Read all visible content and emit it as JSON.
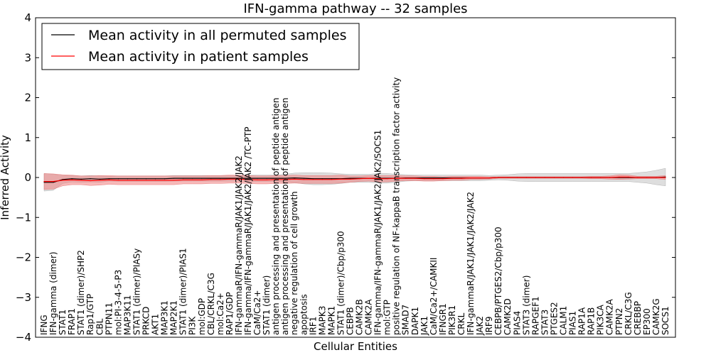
{
  "chart_data": {
    "type": "line",
    "title": "IFN-gamma pathway -- 32 samples",
    "xlabel": "Cellular Entities",
    "ylabel": "Inferred Activity",
    "ylim": [
      -4,
      4
    ],
    "yticks": [
      "4",
      "3",
      "2",
      "1",
      "0",
      "−1",
      "−2",
      "−3",
      "−4"
    ],
    "grid": false,
    "legend_position": "top-left",
    "categories": [
      "IFNG",
      "IFN-gamma (dimer)",
      "STAT1",
      "FRAP1",
      "STAT1 (dimer)/SHP2",
      "Rap1/GTP",
      "CBL",
      "PTPN11",
      "mol:PI-3-4-5-P3",
      "MAP3K11",
      "STAT1 (dimer)/PIASy",
      "PRKCD",
      "AKT1",
      "MAP3K1",
      "MAP2K1",
      "STAT1 (dimer)/PIAS1",
      "PI3K",
      "mol:GDP",
      "CBL/CRKL/C3G",
      "mol:Ca2+",
      "RAP1/GDP",
      "IFN-gammaR/IFN-gammaR/JAK1/JAK2/JAK2",
      "IFN-gamma/IFN-gammaR/JAK1/JAK2/JAK2  /TC-PTP",
      "CaM/Ca2+",
      "STAT1 (dimer)",
      "antigen processing and presentation of peptide antigen",
      "antigen processing and presentation of peptide antigen",
      "negative regulation of cell growth",
      "apoptosis",
      "IRF1",
      "MAPK3",
      "MAPK1",
      "STAT1 (dimer)/Cbp/p300",
      "CEBPB",
      "CAMK2B",
      "CAMK2A",
      "IFN-gamma/IFN-gammaR/JAK1/JAK2/JAK2/SOCS1",
      "mol:GTP",
      "positive regulation of NF-kappaB transcription factor activity",
      "SMAD7",
      "DAPK1",
      "JAK1",
      "CaM/Ca2+/CAMKII",
      "IFNGR1",
      "PIK3R1",
      "CRKL",
      "IFN-gammaR/JAK1/JAK1/JAK2/JAK2",
      "JAK2",
      "IRF9",
      "CEBPB/PTGES2/Cbp/p300",
      "CAMK2D",
      "PIAS4",
      "STAT3 (dimer)",
      "RAPGEF1",
      "STAT3",
      "PTGES2",
      "CALM1",
      "PIAS1",
      "RAP1A",
      "RAP1B",
      "PIK3CA",
      "CAMK2A",
      "PTPN2",
      "CRKL/C3G",
      "CREBBP",
      "EP300",
      "CAMK2G",
      "SOCS1"
    ],
    "series": [
      {
        "name": "Mean activity in all permuted samples",
        "color": "#000000",
        "values": [
          -0.12,
          -0.12,
          -0.05,
          -0.03,
          -0.04,
          -0.03,
          -0.04,
          -0.03,
          -0.03,
          -0.03,
          -0.03,
          -0.03,
          -0.03,
          -0.03,
          -0.02,
          -0.02,
          -0.02,
          -0.02,
          -0.02,
          -0.02,
          -0.02,
          -0.02,
          -0.02,
          -0.02,
          -0.02,
          -0.02,
          -0.02,
          -0.01,
          -0.02,
          -0.03,
          -0.03,
          -0.03,
          -0.03,
          -0.02,
          -0.02,
          -0.02,
          -0.02,
          -0.02,
          -0.02,
          -0.01,
          -0.01,
          -0.01,
          -0.01,
          -0.01,
          -0.01,
          -0.01,
          -0.01,
          -0.01,
          -0.01,
          0.0,
          0.0,
          0.0,
          0.0,
          0.0,
          0.0,
          0.0,
          0.0,
          0.0,
          0.0,
          0.0,
          0.0,
          0.0,
          0.0,
          0.0,
          0.0,
          0.0,
          0.0,
          0.01
        ],
        "band": [
          0.22,
          0.2,
          0.1,
          0.08,
          0.08,
          0.08,
          0.08,
          0.06,
          0.07,
          0.07,
          0.07,
          0.07,
          0.07,
          0.07,
          0.07,
          0.07,
          0.07,
          0.07,
          0.07,
          0.07,
          0.07,
          0.07,
          0.08,
          0.08,
          0.08,
          0.08,
          0.1,
          0.12,
          0.14,
          0.15,
          0.15,
          0.14,
          0.12,
          0.1,
          0.1,
          0.1,
          0.12,
          0.12,
          0.1,
          0.08,
          0.07,
          0.07,
          0.07,
          0.07,
          0.07,
          0.07,
          0.07,
          0.07,
          0.06,
          0.06,
          0.07,
          0.09,
          0.1,
          0.1,
          0.1,
          0.1,
          0.1,
          0.1,
          0.1,
          0.1,
          0.1,
          0.1,
          0.1,
          0.1,
          0.12,
          0.14,
          0.18,
          0.22
        ]
      },
      {
        "name": "Mean activity in patient samples",
        "color": "#ff0000",
        "values": [
          -0.1,
          -0.1,
          -0.07,
          -0.06,
          -0.07,
          -0.08,
          -0.07,
          -0.06,
          -0.07,
          -0.07,
          -0.07,
          -0.07,
          -0.07,
          -0.07,
          -0.07,
          -0.06,
          -0.06,
          -0.06,
          -0.05,
          -0.05,
          -0.04,
          -0.04,
          -0.05,
          -0.06,
          -0.06,
          -0.05,
          -0.05,
          -0.04,
          -0.05,
          -0.05,
          -0.05,
          -0.05,
          -0.04,
          -0.04,
          -0.03,
          -0.02,
          -0.03,
          -0.03,
          -0.02,
          -0.02,
          -0.02,
          -0.03,
          -0.03,
          -0.03,
          -0.02,
          -0.02,
          -0.01,
          -0.01,
          -0.01,
          0.0,
          0.0,
          0.0,
          0.0,
          0.0,
          0.0,
          0.0,
          0.0,
          0.0,
          0.0,
          0.0,
          0.0,
          0.0,
          0.01,
          0.01,
          0.0,
          0.0,
          0.0,
          0.0
        ],
        "band": [
          0.2,
          0.19,
          0.14,
          0.12,
          0.11,
          0.12,
          0.12,
          0.11,
          0.11,
          0.11,
          0.11,
          0.11,
          0.11,
          0.11,
          0.11,
          0.1,
          0.1,
          0.1,
          0.1,
          0.1,
          0.1,
          0.1,
          0.1,
          0.1,
          0.1,
          0.1,
          0.1,
          0.1,
          0.1,
          0.1,
          0.1,
          0.1,
          0.1,
          0.08,
          0.07,
          0.07,
          0.08,
          0.08,
          0.07,
          0.06,
          0.06,
          0.06,
          0.06,
          0.05,
          0.05,
          0.05,
          0.04,
          0.04,
          0.03,
          0.02,
          0.02,
          0.02,
          0.02,
          0.02,
          0.02,
          0.02,
          0.02,
          0.02,
          0.02,
          0.03,
          0.03,
          0.04,
          0.06,
          0.05,
          0.03,
          0.03,
          0.03,
          0.05
        ]
      }
    ]
  }
}
